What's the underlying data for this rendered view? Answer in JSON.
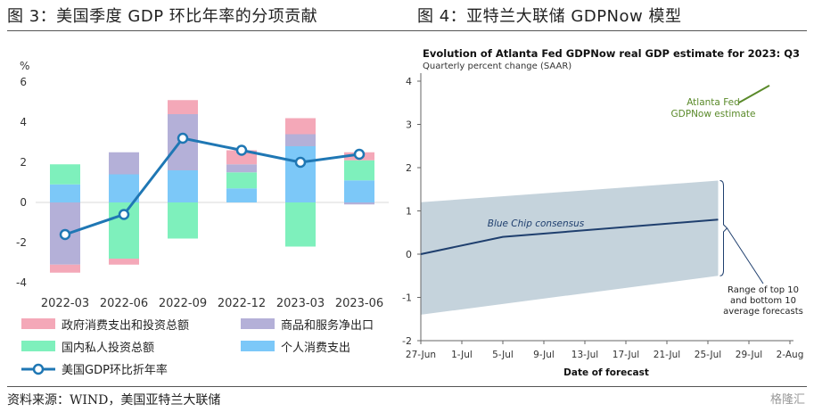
{
  "titles": {
    "left": "图 3：美国季度 GDP 环比年率的分项贡献",
    "right": "图 4：亚特兰大联储 GDPNow 模型"
  },
  "source": "资料来源：WIND，美国亚特兰大联储",
  "watermark": "格隆汇",
  "colors": {
    "gov": "#f4a8b8",
    "netexp": "#b4b0d8",
    "invest": "#7ef0bc",
    "consume": "#7cc8f8",
    "line": "#1f77b4",
    "gdpnow": "#5a8a2a",
    "bluechip": "#1f3f6e",
    "band": "#c5d3dc"
  },
  "chart_data": [
    {
      "type": "bar",
      "stacked": true,
      "ylabel": "%",
      "ylim": [
        -4,
        6
      ],
      "yticks": [
        -4,
        -2,
        0,
        2,
        4,
        6
      ],
      "categories": [
        "2022-03",
        "2022-06",
        "2022-09",
        "2022-12",
        "2023-03",
        "2023-06"
      ],
      "series": [
        {
          "name": "个人消费支出",
          "values": [
            0.9,
            1.4,
            1.6,
            0.7,
            2.8,
            1.1
          ]
        },
        {
          "name": "国内私人投资总额",
          "values": [
            1.0,
            -2.8,
            -1.8,
            0.8,
            -2.2,
            1.0
          ]
        },
        {
          "name": "商品和服务净出口",
          "values": [
            -3.1,
            1.1,
            2.8,
            0.4,
            0.6,
            -0.1
          ]
        },
        {
          "name": "政府消费支出和投资总额",
          "values": [
            -0.4,
            -0.3,
            0.7,
            0.7,
            0.8,
            0.4
          ]
        }
      ],
      "line": {
        "name": "美国GDP环比折年率",
        "values": [
          -1.6,
          -0.6,
          3.2,
          2.6,
          2.0,
          2.4
        ]
      },
      "legend": [
        {
          "label": "政府消费支出和投资总额",
          "kind": "bar",
          "color_key": "gov"
        },
        {
          "label": "商品和服务净出口",
          "kind": "bar",
          "color_key": "netexp"
        },
        {
          "label": "国内私人投资总额",
          "kind": "bar",
          "color_key": "invest"
        },
        {
          "label": "个人消费支出",
          "kind": "bar",
          "color_key": "consume"
        },
        {
          "label": "美国GDP环比折年率",
          "kind": "line",
          "color_key": "line"
        }
      ],
      "legend_position": "bottom"
    },
    {
      "type": "line",
      "title": "Evolution of Atlanta Fed GDPNow real GDP estimate for 2023: Q3",
      "subtitle": "Quarterly percent change (SAAR)",
      "xlabel": "Date of forecast",
      "ylim": [
        -2,
        4
      ],
      "yticks": [
        -2,
        -1,
        0,
        1,
        2,
        3,
        4
      ],
      "x_ticks": [
        "27-Jun",
        "1-Jul",
        "5-Jul",
        "9-Jul",
        "13-Jul",
        "17-Jul",
        "21-Jul",
        "25-Jul",
        "29-Jul",
        "2-Aug"
      ],
      "x_range": [
        "2023-06-27",
        "2023-08-02"
      ],
      "series": [
        {
          "name": "Blue Chip consensus",
          "points": [
            [
              "2023-06-27",
              0.0
            ],
            [
              "2023-07-05",
              0.4
            ],
            [
              "2023-07-26",
              0.8
            ]
          ]
        },
        {
          "name": "Atlanta Fed GDPNow estimate",
          "points": [
            [
              "2023-07-28",
              3.5
            ],
            [
              "2023-07-31",
              3.9
            ]
          ]
        }
      ],
      "band": {
        "name": "Range of top 10 and bottom 10 average forecasts",
        "x": [
          "2023-06-27",
          "2023-07-26"
        ],
        "upper": [
          1.2,
          1.7
        ],
        "lower": [
          -1.4,
          -0.5
        ]
      },
      "annotations": {
        "gdpnow_lines": [
          "Atlanta Fed",
          "GDPNow estimate"
        ],
        "bluechip": "Blue Chip consensus",
        "range_lines": [
          "Range of top 10",
          "and bottom 10",
          "average forecasts"
        ]
      },
      "grid": false
    }
  ]
}
